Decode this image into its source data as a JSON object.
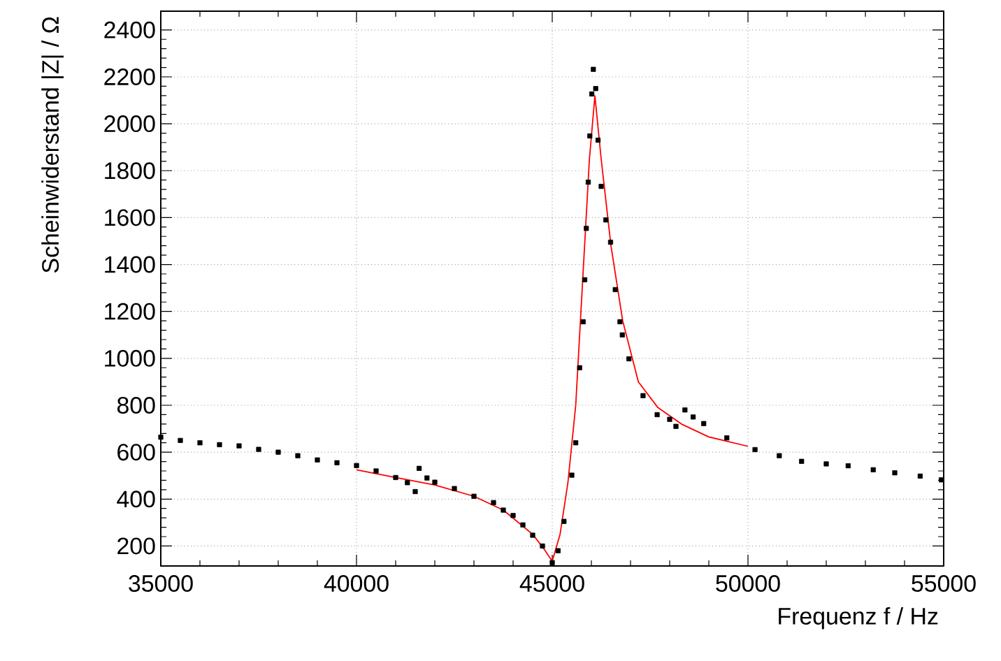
{
  "chart_data": {
    "type": "scatter",
    "xlabel": "Frequenz f / Hz",
    "ylabel": "Scheinwiderstand |Z| / Ω",
    "xlim": [
      35000,
      55000
    ],
    "ylim": [
      115,
      2480
    ],
    "xticks": [
      35000,
      40000,
      45000,
      50000,
      55000
    ],
    "yticks": [
      200,
      400,
      600,
      800,
      1000,
      1200,
      1400,
      1600,
      1800,
      2000,
      2200,
      2400
    ],
    "grid": true,
    "series": [
      {
        "color": "#000000",
        "marker": "square",
        "x": [
          35000,
          35500,
          36000,
          36500,
          37000,
          37500,
          38000,
          38500,
          39000,
          39500,
          40000,
          40500,
          41000,
          41300,
          41500,
          41600,
          41800,
          42000,
          42500,
          43000,
          43500,
          43750,
          44000,
          44250,
          44500,
          44750,
          45000,
          45150,
          45300,
          45500,
          45600,
          45700,
          45790,
          45830,
          45870,
          45920,
          45960,
          46010,
          46050,
          46110,
          46170,
          46250,
          46370,
          46490,
          46610,
          46730,
          46790,
          46960,
          47320,
          47680,
          48000,
          48160,
          48390,
          48600,
          48870,
          49460,
          50180,
          50800,
          51370,
          52000,
          52560,
          53200,
          53750,
          54400,
          54940
        ],
        "values": [
          664,
          650,
          640,
          632,
          627,
          612,
          600,
          585,
          567,
          555,
          543,
          520,
          492,
          470,
          432,
          531,
          490,
          472,
          445,
          412,
          385,
          353,
          330,
          290,
          246,
          200,
          129,
          180,
          305,
          502,
          640,
          960,
          1156,
          1335,
          1554,
          1751,
          1948,
          2127,
          2232,
          2150,
          1930,
          1733,
          1590,
          1495,
          1293,
          1156,
          1100,
          998,
          841,
          760,
          740,
          710,
          780,
          750,
          722,
          661,
          611,
          585,
          561,
          550,
          542,
          525,
          512,
          498,
          482
        ]
      },
      {
        "type": "line",
        "color": "#ff0000",
        "marker": "none",
        "line_style": "solid",
        "x": [
          40000,
          41000,
          42000,
          43000,
          43750,
          44500,
          44800,
          45000,
          45200,
          45400,
          45600,
          45800,
          45950,
          46090,
          46250,
          46500,
          46800,
          47200,
          47700,
          48300,
          49000,
          50000
        ],
        "values": [
          525,
          492,
          460,
          412,
          353,
          250,
          185,
          135,
          250,
          470,
          800,
          1400,
          1850,
          2119,
          1850,
          1480,
          1160,
          900,
          790,
          720,
          665,
          625
        ]
      }
    ]
  }
}
